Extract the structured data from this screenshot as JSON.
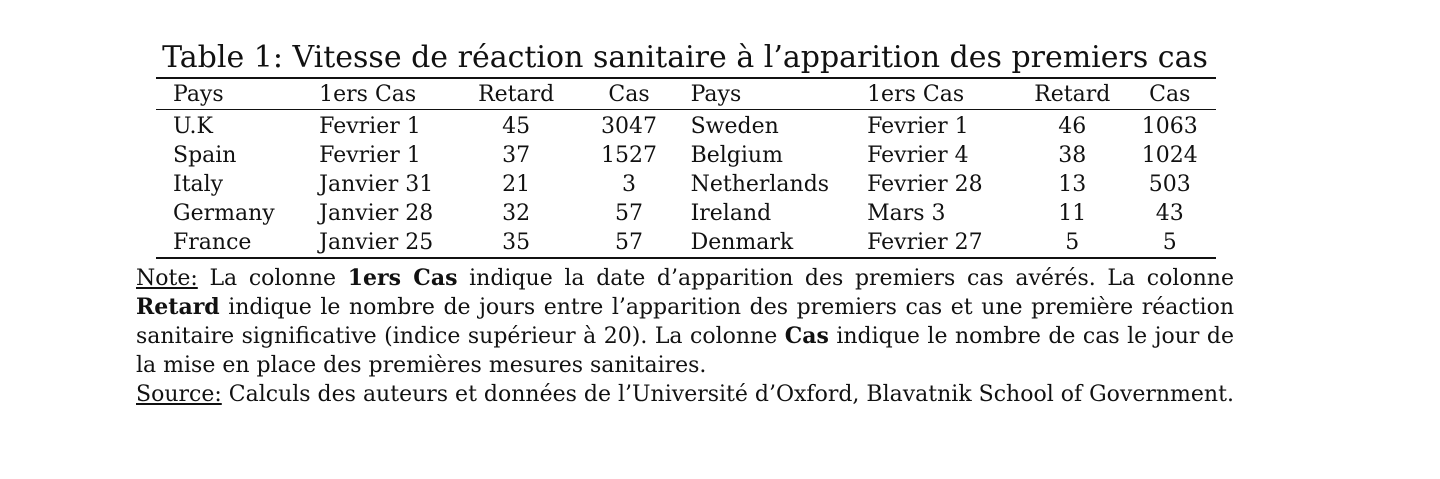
{
  "caption": "Table 1: Vitesse de réaction sanitaire à l’apparition des premiers cas",
  "headers": [
    "Pays",
    "1ers Cas",
    "Retard",
    "Cas",
    "Pays",
    "1ers Cas",
    "Retard",
    "Cas"
  ],
  "rows": [
    [
      "U.K",
      "Fevrier 1",
      "45",
      "3047",
      "Sweden",
      "Fevrier 1",
      "46",
      "1063"
    ],
    [
      "Spain",
      "Fevrier 1",
      "37",
      "1527",
      "Belgium",
      "Fevrier 4",
      "38",
      "1024"
    ],
    [
      "Italy",
      "Janvier 31",
      "21",
      "3",
      "Netherlands",
      "Fevrier 28",
      "13",
      "503"
    ],
    [
      "Germany",
      "Janvier 28",
      "32",
      "57",
      "Ireland",
      "Mars 3",
      "11",
      "43"
    ],
    [
      "France",
      "Janvier 25",
      "35",
      "57",
      "Denmark",
      "Fevrier 27",
      "5",
      "5"
    ]
  ],
  "note": {
    "label": "Note:",
    "t1": " La colonne ",
    "b1": "1ers Cas",
    "t2": " indique la date d’apparition des premiers cas avérés.  La colonne ",
    "b2": "Retard",
    "t3": " indique le nombre de jours entre l’apparition des premiers cas et une première réaction sanitaire significative (indice supérieur à 20). La colonne ",
    "b3": "Cas",
    "t4": " indique le nombre de cas le jour de la mise en place des premières mesures sanitaires."
  },
  "source": {
    "label": "Source:",
    "text": " Calculs des auteurs et données de l’Université d’Oxford, Blavatnik School of Government."
  }
}
